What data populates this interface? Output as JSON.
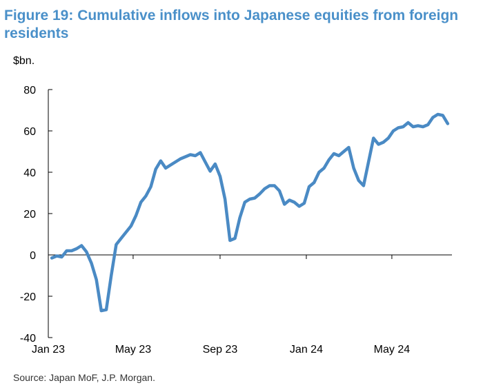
{
  "header": {
    "title": "Figure 19: Cumulative inflows into Japanese equities from foreign residents",
    "unit": "$bn."
  },
  "footer": {
    "source": "Source: Japan MoF, J.P. Morgan."
  },
  "colors": {
    "title": "#4a90c9",
    "series": "#4a8ac4",
    "axis": "#000000"
  },
  "chart_data": {
    "type": "line",
    "title": "Figure 19: Cumulative inflows into Japanese equities from foreign residents",
    "ylabel": "$bn.",
    "xlabel": "",
    "ylim": [
      -40,
      80
    ],
    "yticks": [
      -40,
      -20,
      0,
      20,
      40,
      60,
      80
    ],
    "xticks": [
      {
        "label": "Jan 23",
        "date": "2023-01-01"
      },
      {
        "label": "May 23",
        "date": "2023-05-01"
      },
      {
        "label": "Sep 23",
        "date": "2023-09-01"
      },
      {
        "label": "Jan 24",
        "date": "2024-01-01"
      },
      {
        "label": "May 24",
        "date": "2024-05-01"
      }
    ],
    "grid": false,
    "legend": "none",
    "series": [
      {
        "points": [
          {
            "x": "2023-01-06",
            "y": -1.5
          },
          {
            "x": "2023-01-13",
            "y": -0.5
          },
          {
            "x": "2023-01-20",
            "y": -1.0
          },
          {
            "x": "2023-01-27",
            "y": 2.0
          },
          {
            "x": "2023-02-03",
            "y": 2.0
          },
          {
            "x": "2023-02-10",
            "y": 3.0
          },
          {
            "x": "2023-02-17",
            "y": 4.5
          },
          {
            "x": "2023-02-24",
            "y": 1.5
          },
          {
            "x": "2023-03-03",
            "y": -4.0
          },
          {
            "x": "2023-03-10",
            "y": -12.0
          },
          {
            "x": "2023-03-17",
            "y": -27.0
          },
          {
            "x": "2023-03-24",
            "y": -26.5
          },
          {
            "x": "2023-03-31",
            "y": -10.0
          },
          {
            "x": "2023-04-07",
            "y": 5.0
          },
          {
            "x": "2023-04-14",
            "y": 8.0
          },
          {
            "x": "2023-04-21",
            "y": 11.0
          },
          {
            "x": "2023-04-28",
            "y": 14.0
          },
          {
            "x": "2023-05-05",
            "y": 19.0
          },
          {
            "x": "2023-05-12",
            "y": 25.5
          },
          {
            "x": "2023-05-19",
            "y": 28.5
          },
          {
            "x": "2023-05-26",
            "y": 33.0
          },
          {
            "x": "2023-06-02",
            "y": 41.5
          },
          {
            "x": "2023-06-09",
            "y": 45.5
          },
          {
            "x": "2023-06-16",
            "y": 42.0
          },
          {
            "x": "2023-06-23",
            "y": 43.5
          },
          {
            "x": "2023-06-30",
            "y": 45.0
          },
          {
            "x": "2023-07-07",
            "y": 46.5
          },
          {
            "x": "2023-07-14",
            "y": 47.5
          },
          {
            "x": "2023-07-21",
            "y": 48.5
          },
          {
            "x": "2023-07-28",
            "y": 48.0
          },
          {
            "x": "2023-08-04",
            "y": 49.5
          },
          {
            "x": "2023-08-11",
            "y": 45.0
          },
          {
            "x": "2023-08-18",
            "y": 40.5
          },
          {
            "x": "2023-08-25",
            "y": 44.0
          },
          {
            "x": "2023-09-01",
            "y": 38.0
          },
          {
            "x": "2023-09-08",
            "y": 27.0
          },
          {
            "x": "2023-09-15",
            "y": 7.0
          },
          {
            "x": "2023-09-22",
            "y": 8.0
          },
          {
            "x": "2023-09-29",
            "y": 18.0
          },
          {
            "x": "2023-10-06",
            "y": 25.5
          },
          {
            "x": "2023-10-13",
            "y": 27.0
          },
          {
            "x": "2023-10-20",
            "y": 27.5
          },
          {
            "x": "2023-10-27",
            "y": 29.5
          },
          {
            "x": "2023-11-03",
            "y": 32.0
          },
          {
            "x": "2023-11-10",
            "y": 33.5
          },
          {
            "x": "2023-11-17",
            "y": 33.5
          },
          {
            "x": "2023-11-24",
            "y": 31.0
          },
          {
            "x": "2023-12-01",
            "y": 24.5
          },
          {
            "x": "2023-12-08",
            "y": 26.5
          },
          {
            "x": "2023-12-15",
            "y": 25.5
          },
          {
            "x": "2023-12-22",
            "y": 23.5
          },
          {
            "x": "2023-12-29",
            "y": 25.0
          },
          {
            "x": "2024-01-05",
            "y": 33.0
          },
          {
            "x": "2024-01-12",
            "y": 35.0
          },
          {
            "x": "2024-01-19",
            "y": 40.0
          },
          {
            "x": "2024-01-26",
            "y": 42.0
          },
          {
            "x": "2024-02-02",
            "y": 46.0
          },
          {
            "x": "2024-02-09",
            "y": 49.0
          },
          {
            "x": "2024-02-16",
            "y": 48.0
          },
          {
            "x": "2024-02-23",
            "y": 50.0
          },
          {
            "x": "2024-03-01",
            "y": 52.0
          },
          {
            "x": "2024-03-08",
            "y": 42.0
          },
          {
            "x": "2024-03-15",
            "y": 36.0
          },
          {
            "x": "2024-03-22",
            "y": 33.5
          },
          {
            "x": "2024-03-29",
            "y": 45.0
          },
          {
            "x": "2024-04-05",
            "y": 56.5
          },
          {
            "x": "2024-04-12",
            "y": 53.5
          },
          {
            "x": "2024-04-19",
            "y": 54.5
          },
          {
            "x": "2024-04-26",
            "y": 56.5
          },
          {
            "x": "2024-05-03",
            "y": 60.0
          },
          {
            "x": "2024-05-10",
            "y": 61.5
          },
          {
            "x": "2024-05-17",
            "y": 62.0
          },
          {
            "x": "2024-05-24",
            "y": 64.0
          },
          {
            "x": "2024-05-31",
            "y": 62.0
          },
          {
            "x": "2024-06-07",
            "y": 62.5
          },
          {
            "x": "2024-06-14",
            "y": 62.0
          },
          {
            "x": "2024-06-21",
            "y": 63.0
          },
          {
            "x": "2024-06-28",
            "y": 66.5
          },
          {
            "x": "2024-07-05",
            "y": 68.0
          },
          {
            "x": "2024-07-12",
            "y": 67.5
          },
          {
            "x": "2024-07-19",
            "y": 63.5
          }
        ]
      }
    ]
  }
}
